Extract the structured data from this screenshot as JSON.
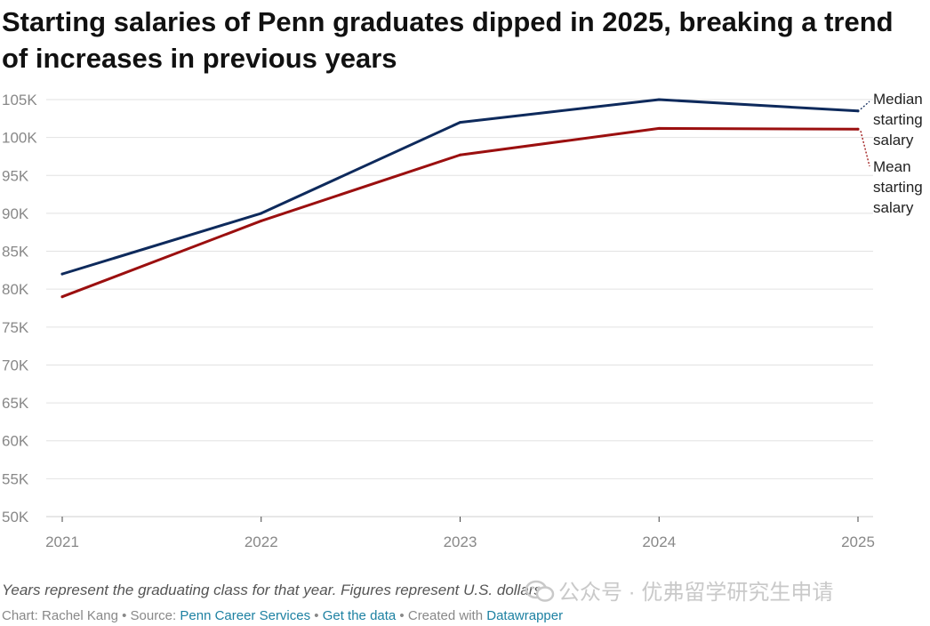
{
  "title": "Starting salaries of Penn graduates dipped in 2025, breaking a trend of increases in previous years",
  "note": "Years represent the graduating class for that year. Figures represent U.S. dollars.",
  "credits": {
    "chart_prefix": "Chart: Rachel Kang",
    "sep": " • ",
    "source_prefix": "Source: ",
    "source_link": "Penn Career Services",
    "get_data": "Get the data",
    "created_prefix": "Created with ",
    "created_link": "Datawrapper"
  },
  "watermark": {
    "text": "公众号 · 优弗留学研究生申请",
    "icon": "wechat-icon"
  },
  "colors": {
    "median": "#0e2a5c",
    "mean": "#9b0f0f",
    "grid": "#e2e2e2",
    "tick_text": "#888888",
    "link": "#1d81a2"
  },
  "chart_data": {
    "type": "line",
    "x": [
      "2021",
      "2022",
      "2023",
      "2024",
      "2025"
    ],
    "ylim": [
      50000,
      105000
    ],
    "yticks": [
      50000,
      55000,
      60000,
      65000,
      70000,
      75000,
      80000,
      85000,
      90000,
      95000,
      100000,
      105000
    ],
    "ytick_labels": [
      "50K",
      "55K",
      "60K",
      "65K",
      "70K",
      "75K",
      "80K",
      "85K",
      "90K",
      "95K",
      "100K",
      "105K"
    ],
    "grid": true,
    "xlabel": "",
    "ylabel": "",
    "series": [
      {
        "name": "Median starting salary",
        "label_lines": [
          "Median",
          "starting",
          "salary"
        ],
        "color": "#0e2a5c",
        "values": [
          82000,
          90000,
          102000,
          105000,
          103500
        ]
      },
      {
        "name": "Mean starting salary",
        "label_lines": [
          "Mean",
          "starting",
          "salary"
        ],
        "color": "#9b0f0f",
        "values": [
          79000,
          89000,
          97700,
          101200,
          101100
        ]
      }
    ]
  }
}
